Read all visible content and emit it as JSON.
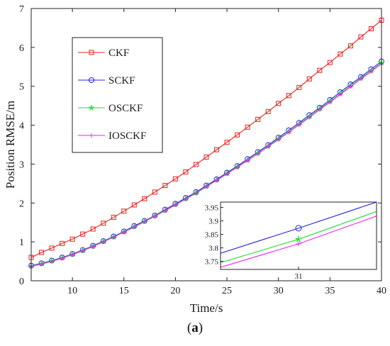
{
  "chart_data": {
    "type": "line",
    "xlabel": "Time/s",
    "ylabel": "Position RMSE/m",
    "xlim": [
      6,
      40
    ],
    "ylim": [
      0,
      7
    ],
    "x_ticks": [
      10,
      15,
      20,
      25,
      30,
      35,
      40
    ],
    "y_ticks": [
      0,
      1,
      2,
      3,
      4,
      5,
      6,
      7
    ],
    "grid": false,
    "legend_position": "upper-left",
    "x": [
      6,
      7,
      8,
      9,
      10,
      11,
      12,
      13,
      14,
      15,
      16,
      17,
      18,
      19,
      20,
      21,
      22,
      23,
      24,
      25,
      26,
      27,
      28,
      29,
      30,
      31,
      32,
      33,
      34,
      35,
      36,
      37,
      38,
      39,
      40
    ],
    "series": [
      {
        "name": "CKF",
        "color": "#e8211f",
        "marker": "square",
        "values": [
          0.6,
          0.73,
          0.84,
          0.96,
          1.07,
          1.2,
          1.33,
          1.48,
          1.63,
          1.79,
          1.95,
          2.11,
          2.28,
          2.45,
          2.62,
          2.8,
          2.99,
          3.18,
          3.37,
          3.56,
          3.75,
          3.95,
          4.15,
          4.35,
          4.56,
          4.76,
          4.97,
          5.19,
          5.41,
          5.61,
          5.83,
          6.04,
          6.27,
          6.48,
          6.7
        ]
      },
      {
        "name": "SCKF",
        "color": "#2323e0",
        "marker": "circle",
        "values": [
          0.39,
          0.45,
          0.52,
          0.6,
          0.69,
          0.79,
          0.9,
          1.02,
          1.14,
          1.27,
          1.41,
          1.54,
          1.68,
          1.83,
          1.98,
          2.13,
          2.28,
          2.45,
          2.61,
          2.78,
          2.95,
          3.13,
          3.31,
          3.49,
          3.68,
          3.87,
          4.06,
          4.26,
          4.45,
          4.65,
          4.85,
          5.05,
          5.24,
          5.44,
          5.64
        ]
      },
      {
        "name": "OSCKF",
        "color": "#22dd33",
        "marker": "star",
        "values": [
          0.38,
          0.44,
          0.51,
          0.59,
          0.68,
          0.78,
          0.89,
          1.01,
          1.13,
          1.26,
          1.39,
          1.53,
          1.67,
          1.81,
          1.96,
          2.11,
          2.26,
          2.43,
          2.59,
          2.76,
          2.93,
          3.1,
          3.28,
          3.46,
          3.65,
          3.83,
          4.03,
          4.22,
          4.42,
          4.61,
          4.81,
          5.01,
          5.21,
          5.4,
          5.6
        ]
      },
      {
        "name": "IOSCKF",
        "color": "#ee22ee",
        "marker": "plus",
        "values": [
          0.37,
          0.43,
          0.5,
          0.58,
          0.67,
          0.77,
          0.88,
          1.0,
          1.12,
          1.25,
          1.38,
          1.52,
          1.66,
          1.8,
          1.95,
          2.1,
          2.25,
          2.42,
          2.58,
          2.75,
          2.92,
          3.09,
          3.27,
          3.45,
          3.63,
          3.82,
          4.01,
          4.2,
          4.4,
          4.59,
          4.79,
          4.99,
          5.19,
          5.38,
          5.58
        ]
      }
    ],
    "inset": {
      "xlim": [
        30.5,
        31.5
      ],
      "ylim": [
        3.72,
        3.97
      ],
      "x_ticks": [
        31
      ],
      "y_ticks": [
        3.75,
        3.8,
        3.85,
        3.9,
        3.95
      ],
      "x": [
        30.5,
        31,
        31.5
      ],
      "series": [
        {
          "name": "SCKF",
          "values": [
            3.78,
            3.873,
            3.97
          ],
          "marker_at": 31
        },
        {
          "name": "OSCKF",
          "values": [
            3.745,
            3.832,
            3.935
          ],
          "marker_at": 31
        },
        {
          "name": "IOSCKF",
          "values": [
            3.728,
            3.815,
            3.918
          ],
          "marker_at": 31
        }
      ]
    }
  },
  "caption": "(a)"
}
